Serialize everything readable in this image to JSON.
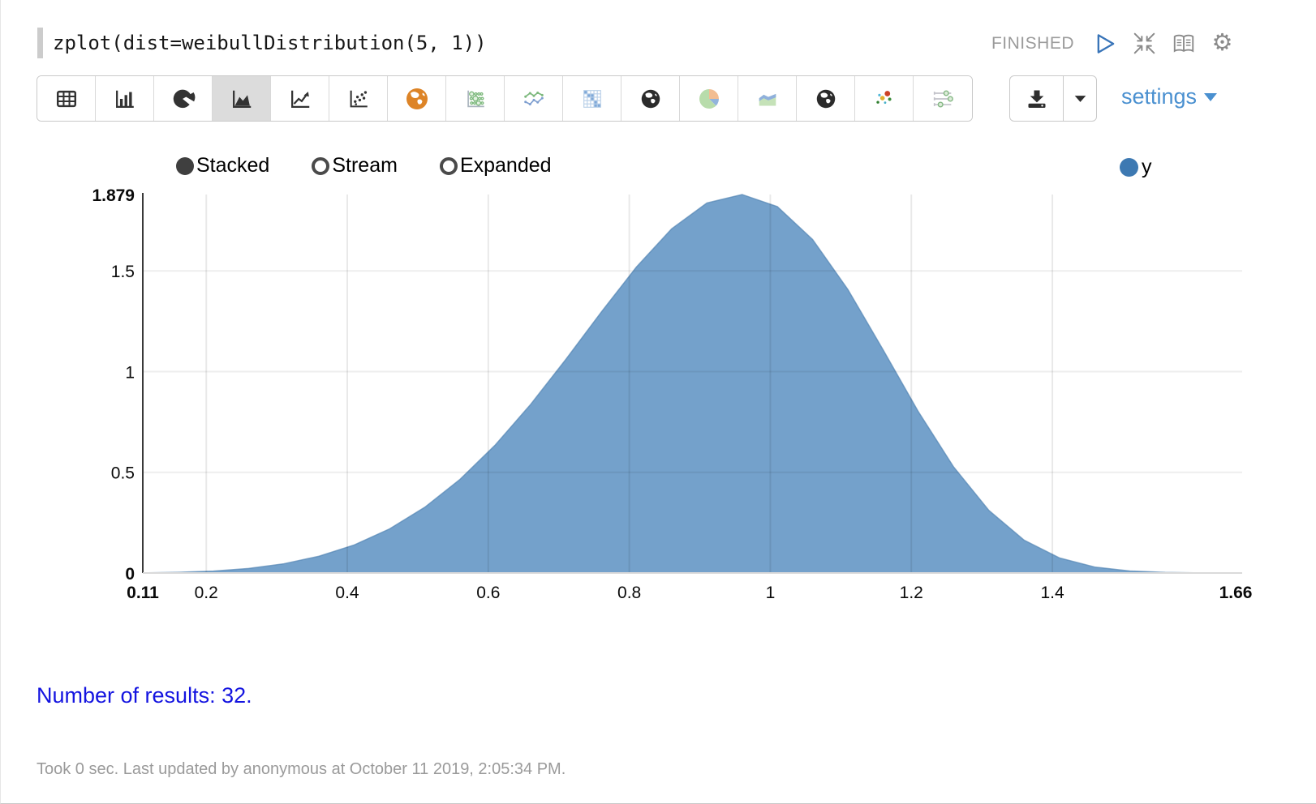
{
  "header": {
    "code": "zplot(dist=weibullDistribution(5, 1))",
    "status": "FINISHED",
    "icons": [
      "run-icon",
      "collapse-icon",
      "notebook-icon",
      "gear-icon"
    ]
  },
  "toolbar": {
    "chart_types": [
      "table",
      "bar-chart",
      "pie-chart",
      "area-chart",
      "line-chart",
      "scatter-chart",
      "map-orange",
      "bubble-chart",
      "multi-line-chart",
      "heatmap",
      "globe-dark",
      "pie-chart-pastel",
      "area-chart-pastel",
      "globe-dark-2",
      "scatter-color",
      "parallel-sliders"
    ],
    "selected": "area-chart",
    "settings_label": "settings"
  },
  "controls": {
    "modes": [
      {
        "label": "Stacked",
        "selected": true
      },
      {
        "label": "Stream",
        "selected": false
      },
      {
        "label": "Expanded",
        "selected": false
      }
    ],
    "legend_label": "y",
    "legend_color": "#3d79b2"
  },
  "chart_data": {
    "type": "area",
    "title": "",
    "xlabel": "",
    "ylabel": "",
    "xlim": [
      0.11,
      1.66
    ],
    "ylim": [
      0,
      1.879
    ],
    "grid": true,
    "legend_position": "top-right",
    "fill_color": "#74a1cb",
    "stroke_color": "#4e81b0",
    "x": [
      0.11,
      0.16,
      0.21,
      0.26,
      0.31,
      0.36,
      0.41,
      0.46,
      0.51,
      0.56,
      0.61,
      0.66,
      0.71,
      0.76,
      0.81,
      0.86,
      0.91,
      0.96,
      1.01,
      1.06,
      1.11,
      1.16,
      1.21,
      1.26,
      1.31,
      1.36,
      1.41,
      1.46,
      1.51,
      1.56,
      1.61,
      1.66
    ],
    "series": [
      {
        "name": "y",
        "values": [
          0.0007,
          0.0033,
          0.0097,
          0.0228,
          0.046,
          0.0835,
          0.1397,
          0.2193,
          0.3268,
          0.4654,
          0.6362,
          0.8371,
          1.0608,
          1.2945,
          1.5187,
          1.7087,
          1.837,
          1.8791,
          1.8189,
          1.6558,
          1.4078,
          1.1082,
          0.8009,
          0.5267,
          0.3109,
          0.1631,
          0.0751,
          0.0299,
          0.0101,
          0.0029,
          0.0007,
          0.0001
        ]
      }
    ],
    "xticks": [
      {
        "v": 0.11,
        "label": "0.11",
        "bold": true
      },
      {
        "v": 0.2,
        "label": "0.2"
      },
      {
        "v": 0.4,
        "label": "0.4"
      },
      {
        "v": 0.6,
        "label": "0.6"
      },
      {
        "v": 0.8,
        "label": "0.8"
      },
      {
        "v": 1,
        "label": "1"
      },
      {
        "v": 1.2,
        "label": "1.2"
      },
      {
        "v": 1.4,
        "label": "1.4"
      },
      {
        "v": 1.66,
        "label": "1.66",
        "bold": true
      }
    ],
    "yticks": [
      {
        "v": 0,
        "label": "0",
        "bold": true
      },
      {
        "v": 0.5,
        "label": "0.5"
      },
      {
        "v": 1,
        "label": "1"
      },
      {
        "v": 1.5,
        "label": "1.5"
      },
      {
        "v": 1.879,
        "label": "1.879",
        "bold": true
      }
    ]
  },
  "footer": {
    "results_text": "Number of results: 32.",
    "status_line": "Took 0 sec. Last updated by anonymous at October 11 2019, 2:05:34 PM."
  },
  "colors": {
    "accent_blue": "#4a90d0",
    "area_fill": "#74a1cb",
    "legend_dot": "#3d79b2",
    "results_blue": "#1414e0",
    "status_gray": "#9a9a9a",
    "selected_tool_bg": "#dcdcdc"
  }
}
